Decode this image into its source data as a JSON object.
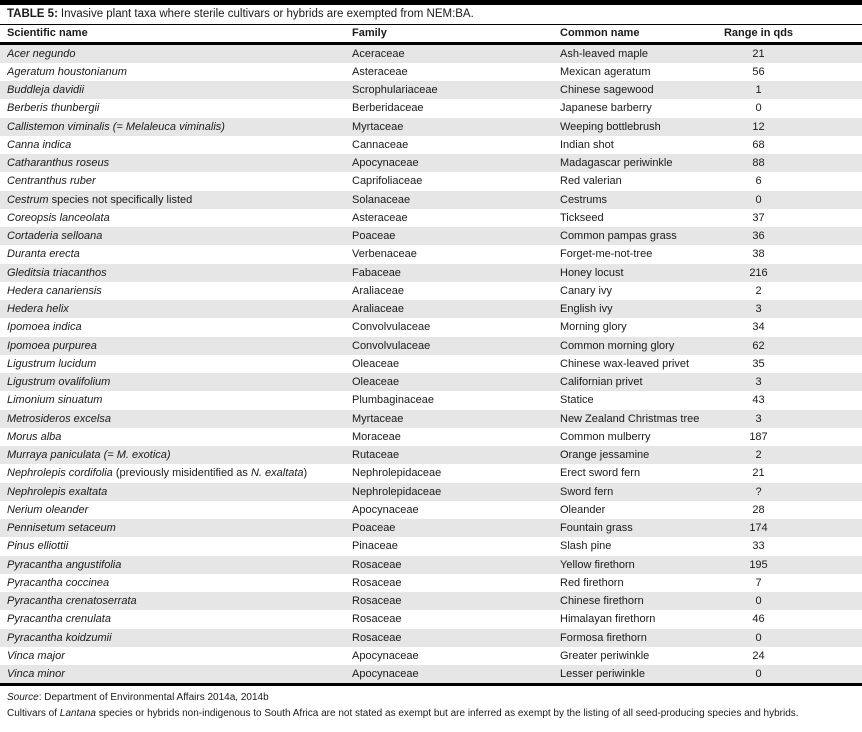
{
  "title": {
    "label": "TABLE 5:",
    "text": "Invasive plant taxa where sterile cultivars or hybrids are exempted from NEM:BA."
  },
  "table": {
    "columns": [
      "Scientific name",
      "Family",
      "Common name",
      "Range in qds"
    ],
    "rows": [
      {
        "scientific": [
          {
            "t": "Acer negundo",
            "i": true
          }
        ],
        "family": "Aceraceae",
        "common": "Ash-leaved maple",
        "range": "21"
      },
      {
        "scientific": [
          {
            "t": "Ageratum houstonianum",
            "i": true
          }
        ],
        "family": "Asteraceae",
        "common": "Mexican ageratum",
        "range": "56"
      },
      {
        "scientific": [
          {
            "t": "Buddleja davidii",
            "i": true
          }
        ],
        "family": "Scrophulariaceae",
        "common": "Chinese sagewood",
        "range": "1"
      },
      {
        "scientific": [
          {
            "t": "Berberis thunbergii",
            "i": true
          }
        ],
        "family": "Berberidaceae",
        "common": "Japanese barberry",
        "range": "0"
      },
      {
        "scientific": [
          {
            "t": "Callistemon viminalis (= Melaleuca viminalis)",
            "i": true
          }
        ],
        "family": "Myrtaceae",
        "common": "Weeping bottlebrush",
        "range": "12"
      },
      {
        "scientific": [
          {
            "t": "Canna indica",
            "i": true
          }
        ],
        "family": "Cannaceae",
        "common": "Indian shot",
        "range": "68"
      },
      {
        "scientific": [
          {
            "t": "Catharanthus roseus",
            "i": true
          }
        ],
        "family": "Apocynaceae",
        "common": "Madagascar periwinkle",
        "range": "88"
      },
      {
        "scientific": [
          {
            "t": "Centranthus ruber",
            "i": true
          }
        ],
        "family": "Caprifoliaceae",
        "common": "Red valerian",
        "range": "6"
      },
      {
        "scientific": [
          {
            "t": "Cestrum",
            "i": true
          },
          {
            "t": " species not specifically listed",
            "i": false
          }
        ],
        "family": "Solanaceae",
        "common": "Cestrums",
        "range": "0"
      },
      {
        "scientific": [
          {
            "t": "Coreopsis lanceolata",
            "i": true
          }
        ],
        "family": "Asteraceae",
        "common": "Tickseed",
        "range": "37"
      },
      {
        "scientific": [
          {
            "t": "Cortaderia selloana",
            "i": true
          }
        ],
        "family": "Poaceae",
        "common": "Common pampas grass",
        "range": "36"
      },
      {
        "scientific": [
          {
            "t": "Duranta erecta",
            "i": true
          }
        ],
        "family": "Verbenaceae",
        "common": "Forget-me-not-tree",
        "range": "38"
      },
      {
        "scientific": [
          {
            "t": "Gleditsia triacanthos",
            "i": true
          }
        ],
        "family": "Fabaceae",
        "common": "Honey locust",
        "range": "216"
      },
      {
        "scientific": [
          {
            "t": "Hedera canariensis",
            "i": true
          }
        ],
        "family": "Araliaceae",
        "common": "Canary ivy",
        "range": "2"
      },
      {
        "scientific": [
          {
            "t": "Hedera helix",
            "i": true
          }
        ],
        "family": "Araliaceae",
        "common": "English ivy",
        "range": "3"
      },
      {
        "scientific": [
          {
            "t": "Ipomoea indica",
            "i": true
          }
        ],
        "family": "Convolvulaceae",
        "common": "Morning glory",
        "range": "34"
      },
      {
        "scientific": [
          {
            "t": "Ipomoea purpurea",
            "i": true
          }
        ],
        "family": "Convolvulaceae",
        "common": "Common morning glory",
        "range": "62"
      },
      {
        "scientific": [
          {
            "t": "Ligustrum lucidum",
            "i": true
          }
        ],
        "family": "Oleaceae",
        "common": "Chinese wax-leaved privet",
        "range": "35"
      },
      {
        "scientific": [
          {
            "t": "Ligustrum ovalifolium",
            "i": true
          }
        ],
        "family": "Oleaceae",
        "common": "Californian privet",
        "range": "3"
      },
      {
        "scientific": [
          {
            "t": "Limonium sinuatum",
            "i": true
          }
        ],
        "family": "Plumbaginaceae",
        "common": "Statice",
        "range": "43"
      },
      {
        "scientific": [
          {
            "t": "Metrosideros excelsa",
            "i": true
          }
        ],
        "family": "Myrtaceae",
        "common": "New Zealand Christmas tree",
        "range": "3"
      },
      {
        "scientific": [
          {
            "t": "Morus alba",
            "i": true
          }
        ],
        "family": "Moraceae",
        "common": "Common mulberry",
        "range": "187"
      },
      {
        "scientific": [
          {
            "t": "Murraya paniculata (= M. exotica)",
            "i": true
          }
        ],
        "family": "Rutaceae",
        "common": "Orange jessamine",
        "range": "2"
      },
      {
        "scientific": [
          {
            "t": "Nephrolepis cordifolia",
            "i": true
          },
          {
            "t": " (previously misidentified as ",
            "i": false
          },
          {
            "t": "N. exaltata",
            "i": true
          },
          {
            "t": ")",
            "i": false
          }
        ],
        "family": "Nephrolepidaceae",
        "common": "Erect sword fern",
        "range": "21"
      },
      {
        "scientific": [
          {
            "t": "Nephrolepis exaltata",
            "i": true
          }
        ],
        "family": "Nephrolepidaceae",
        "common": "Sword fern",
        "range": "?"
      },
      {
        "scientific": [
          {
            "t": "Nerium oleander",
            "i": true
          }
        ],
        "family": "Apocynaceae",
        "common": "Oleander",
        "range": "28"
      },
      {
        "scientific": [
          {
            "t": "Pennisetum setaceum",
            "i": true
          }
        ],
        "family": "Poaceae",
        "common": "Fountain grass",
        "range": "174"
      },
      {
        "scientific": [
          {
            "t": "Pinus elliottii",
            "i": true
          }
        ],
        "family": "Pinaceae",
        "common": "Slash pine",
        "range": "33"
      },
      {
        "scientific": [
          {
            "t": "Pyracantha angustifolia",
            "i": true
          }
        ],
        "family": "Rosaceae",
        "common": "Yellow firethorn",
        "range": "195"
      },
      {
        "scientific": [
          {
            "t": "Pyracantha coccinea",
            "i": true
          }
        ],
        "family": "Rosaceae",
        "common": "Red firethorn",
        "range": "7"
      },
      {
        "scientific": [
          {
            "t": "Pyracantha crenatoserrata",
            "i": true
          }
        ],
        "family": "Rosaceae",
        "common": "Chinese firethorn",
        "range": "0"
      },
      {
        "scientific": [
          {
            "t": "Pyracantha crenulata",
            "i": true
          }
        ],
        "family": "Rosaceae",
        "common": "Himalayan firethorn",
        "range": "46"
      },
      {
        "scientific": [
          {
            "t": "Pyracantha koidzumii",
            "i": true
          }
        ],
        "family": "Rosaceae",
        "common": "Formosa firethorn",
        "range": "0"
      },
      {
        "scientific": [
          {
            "t": "Vinca major",
            "i": true
          }
        ],
        "family": "Apocynaceae",
        "common": "Greater periwinkle",
        "range": "24"
      },
      {
        "scientific": [
          {
            "t": "Vinca minor",
            "i": true
          }
        ],
        "family": "Apocynaceae",
        "common": "Lesser periwinkle",
        "range": "0"
      }
    ]
  },
  "footnotes": {
    "source": [
      {
        "t": "Source",
        "i": true
      },
      {
        "t": ": Department of Environmental Affairs 2014a, 2014b",
        "i": false
      }
    ],
    "note": [
      {
        "t": "Cultivars of ",
        "i": false
      },
      {
        "t": "Lantana",
        "i": true
      },
      {
        "t": " species or hybrids non-indigenous to South Africa are not stated as exempt but are inferred as exempt by the listing of all seed-producing species and hybrids.",
        "i": false
      }
    ]
  },
  "colors": {
    "stripe": "#e6e6e6",
    "rule": "#000000",
    "text": "#1a1a1a"
  }
}
